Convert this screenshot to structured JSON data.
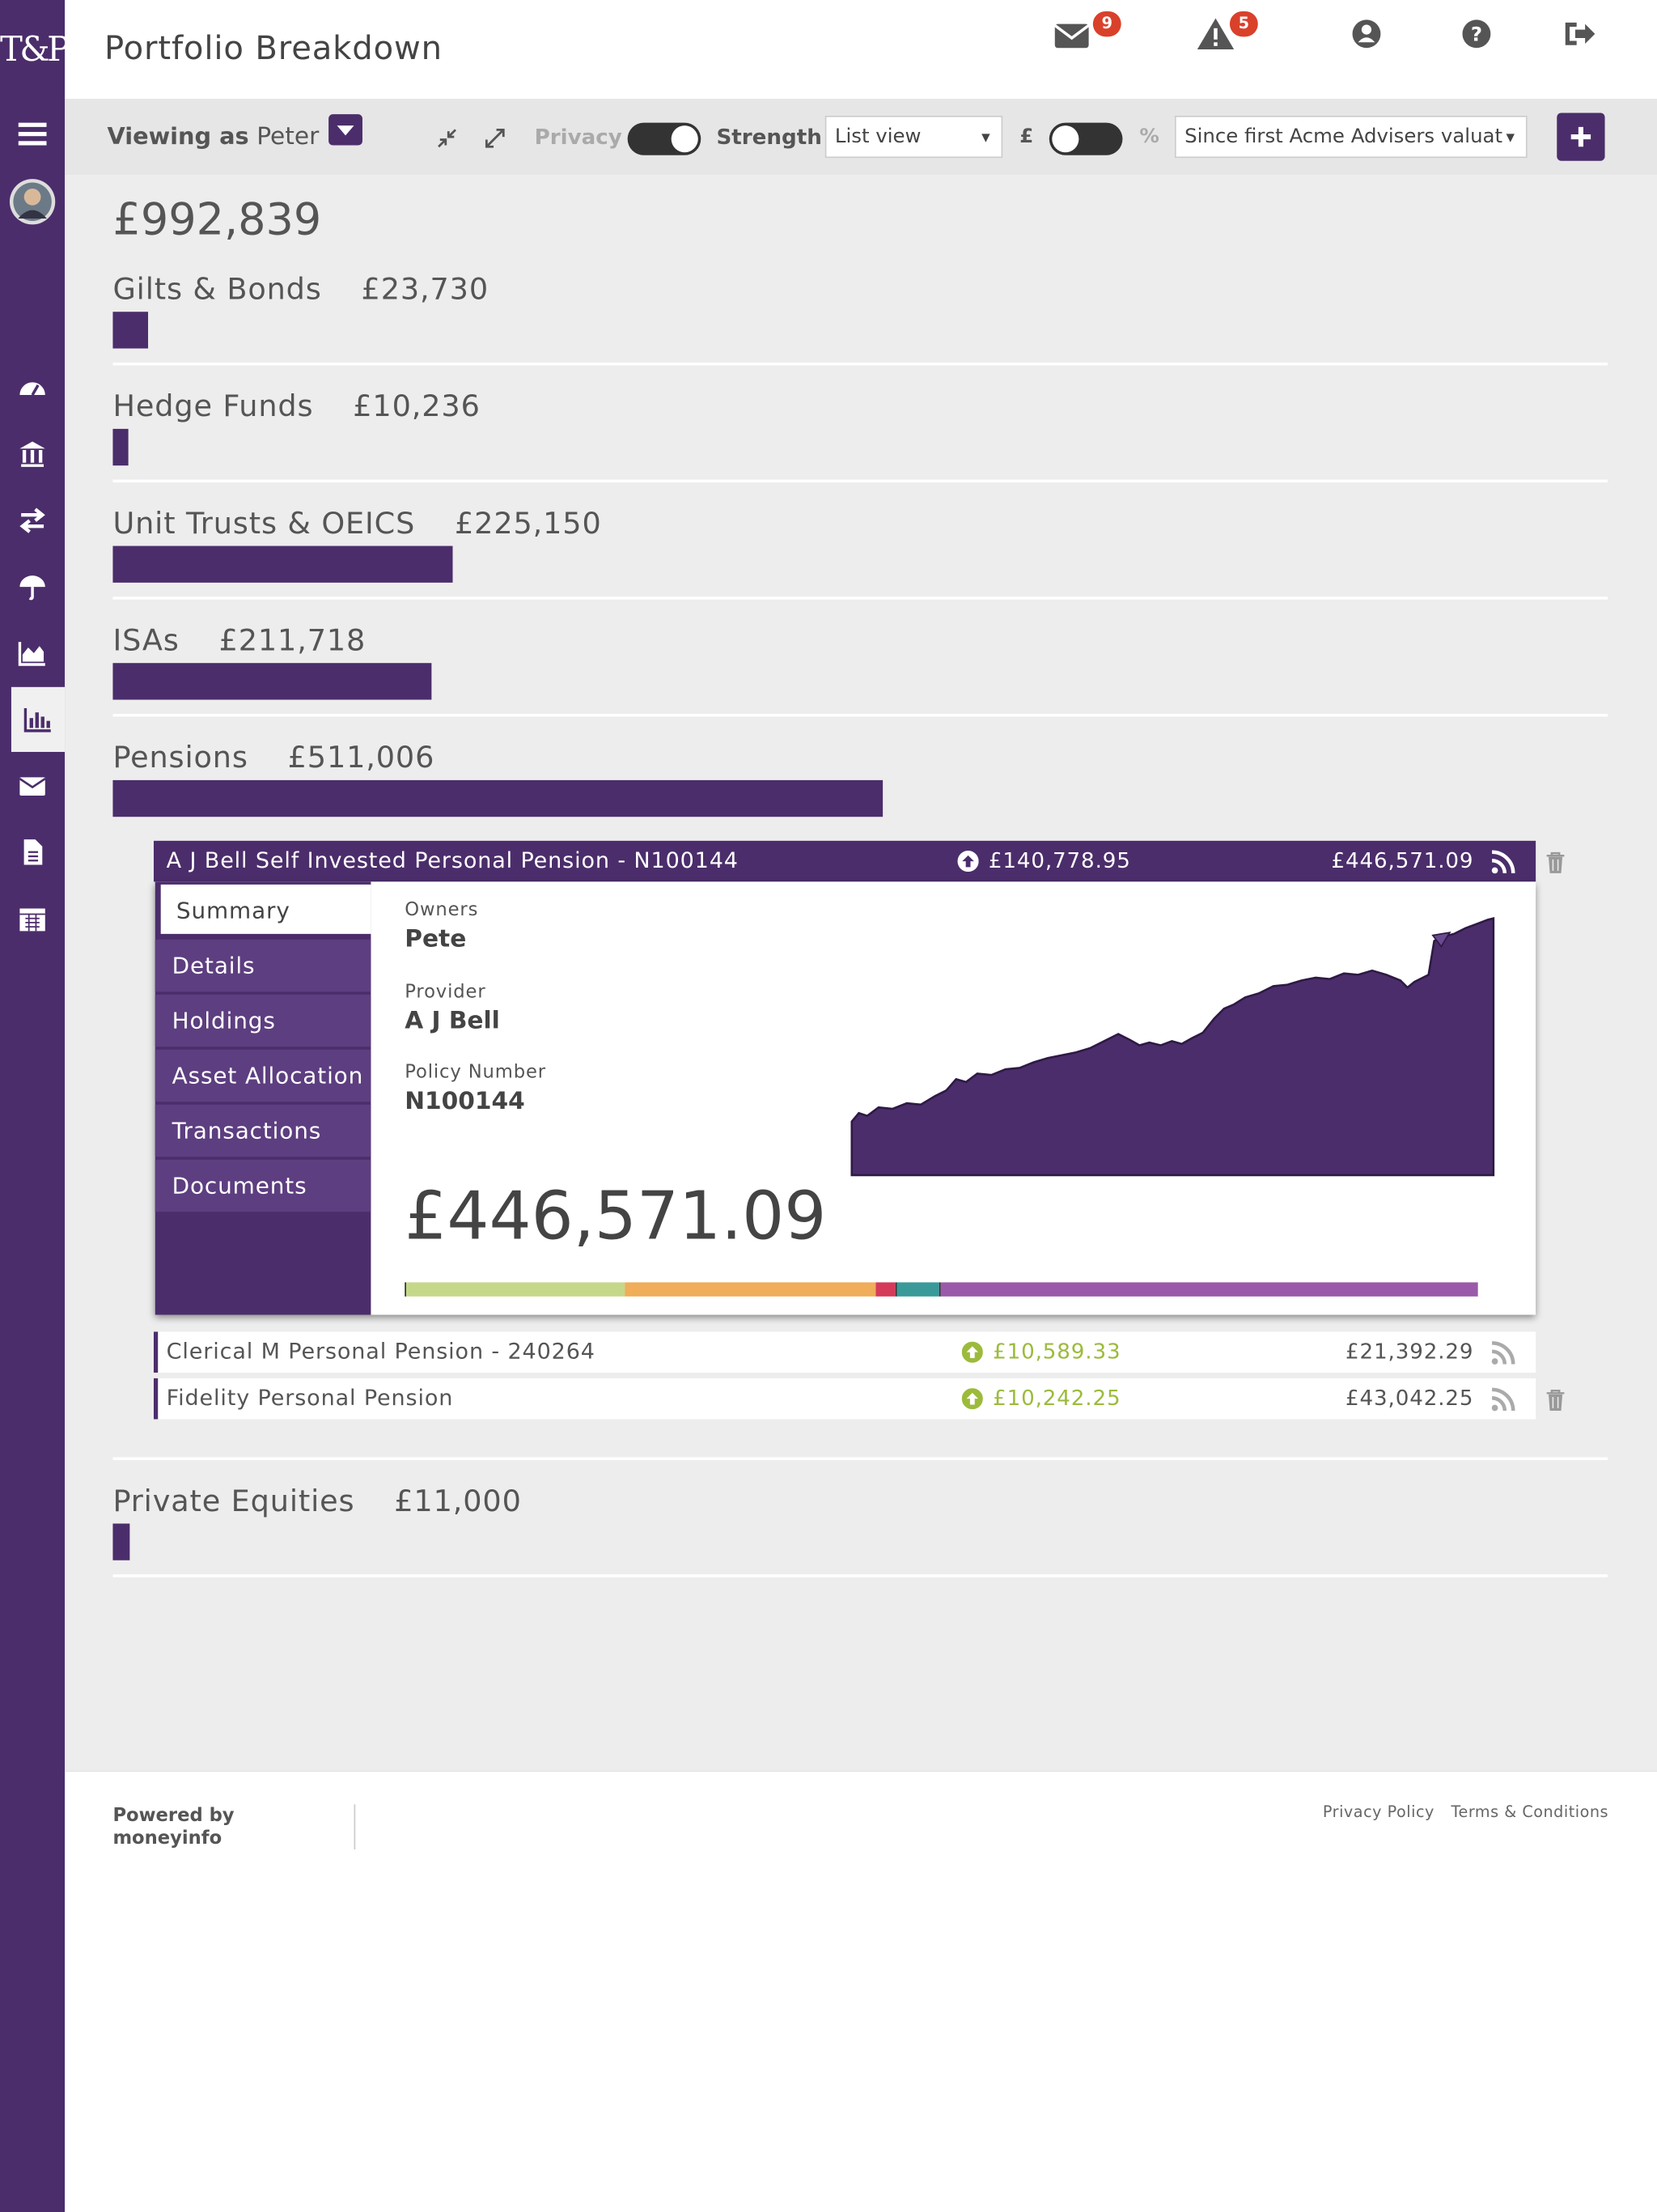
{
  "header": {
    "logo": "T&P",
    "title": "Portfolio Breakdown",
    "messages_badge": "9",
    "alerts_badge": "5"
  },
  "toolbar": {
    "viewing_as_label": "Viewing as",
    "viewing_as": "Peter",
    "privacy": "Privacy",
    "strength": "Strength",
    "view_select": "List view",
    "currency_symbol": "£",
    "percent_symbol": "%",
    "period_select": "Since first Acme Advisers valuat"
  },
  "total": "£992,839",
  "categories": [
    {
      "name": "Gilts & Bonds",
      "value": "£23,730"
    },
    {
      "name": "Hedge Funds",
      "value": "£10,236"
    },
    {
      "name": "Unit Trusts & OEICS",
      "value": "£225,150"
    },
    {
      "name": "ISAs",
      "value": "£211,718"
    },
    {
      "name": "Pensions",
      "value": "£511,006",
      "accounts": [
        {
          "name": "A J Bell Self Invested Personal Pension - N100144",
          "gain": "£140,778.95",
          "value": "£446,571.09",
          "detail": {
            "tabs": [
              "Summary",
              "Details",
              "Holdings",
              "Asset Allocation",
              "Transactions",
              "Documents"
            ],
            "fields": [
              {
                "label": "Owners",
                "value": "Pete"
              },
              {
                "label": "Provider",
                "value": "A J Bell"
              },
              {
                "label": "Policy Number",
                "value": "N100144"
              }
            ],
            "value": "£446,571.09"
          }
        },
        {
          "name": "Clerical M Personal Pension - 240264",
          "gain": "£10,589.33",
          "value": "£21,392.29"
        },
        {
          "name": "Fidelity Personal Pension",
          "gain": "£10,242.25",
          "value": "£43,042.25"
        }
      ]
    },
    {
      "name": "Private Equities",
      "value": "£11,000"
    }
  ],
  "footer": {
    "powered_by": "Powered by",
    "brand": "moneyinfo",
    "links": [
      "Privacy Policy",
      "Terms & Conditions"
    ]
  }
}
